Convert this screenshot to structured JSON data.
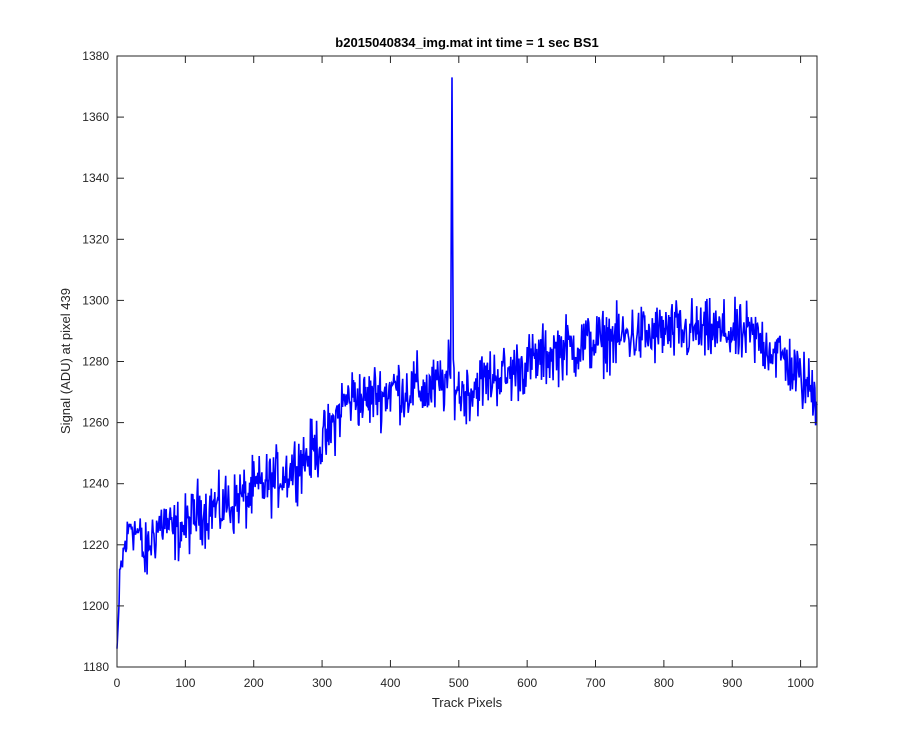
{
  "chart_data": {
    "type": "line",
    "title": "b2015040834_img.mat int time = 1 sec   BS1",
    "xlabel": "Track Pixels",
    "ylabel": "Signal (ADU) at pixel 439",
    "xlim": [
      0,
      1024
    ],
    "ylim": [
      1180,
      1380
    ],
    "xticks": [
      0,
      100,
      200,
      300,
      400,
      500,
      600,
      700,
      800,
      900,
      1000
    ],
    "yticks": [
      1180,
      1200,
      1220,
      1240,
      1260,
      1280,
      1300,
      1320,
      1340,
      1360,
      1380
    ],
    "grid": false,
    "legend": "none",
    "line_color": "#0000ff",
    "series": [
      {
        "values_note_omitted": false,
        "x": [
          0,
          5,
          10,
          15,
          20,
          25,
          30,
          35,
          40,
          45,
          50,
          60,
          70,
          80,
          90,
          100,
          110,
          120,
          130,
          140,
          150,
          160,
          170,
          180,
          190,
          200,
          210,
          220,
          230,
          240,
          250,
          260,
          270,
          280,
          290,
          300,
          310,
          320,
          330,
          340,
          350,
          360,
          370,
          380,
          390,
          400,
          410,
          420,
          430,
          440,
          450,
          460,
          470,
          480,
          488,
          490,
          492,
          500,
          510,
          520,
          530,
          540,
          550,
          560,
          570,
          580,
          590,
          600,
          610,
          620,
          630,
          640,
          650,
          660,
          670,
          680,
          690,
          700,
          710,
          720,
          730,
          740,
          750,
          760,
          770,
          780,
          790,
          800,
          810,
          820,
          830,
          840,
          850,
          860,
          870,
          880,
          890,
          900,
          910,
          920,
          930,
          940,
          950,
          960,
          970,
          980,
          990,
          1000,
          1010,
          1020,
          1024
        ],
        "y": [
          1186,
          1210,
          1218,
          1222,
          1228,
          1225,
          1224,
          1222,
          1215,
          1218,
          1222,
          1226,
          1228,
          1224,
          1225,
          1226,
          1228,
          1232,
          1230,
          1233,
          1231,
          1234,
          1233,
          1236,
          1235,
          1238,
          1239,
          1240,
          1241,
          1243,
          1244,
          1246,
          1248,
          1249,
          1252,
          1253,
          1256,
          1261,
          1266,
          1268,
          1269,
          1267,
          1268,
          1270,
          1269,
          1271,
          1272,
          1270,
          1271,
          1272,
          1270,
          1271,
          1272,
          1273,
          1276,
          1373,
          1275,
          1270,
          1270,
          1271,
          1273,
          1274,
          1275,
          1276,
          1275,
          1277,
          1278,
          1279,
          1280,
          1281,
          1282,
          1283,
          1284,
          1285,
          1284,
          1286,
          1286,
          1287,
          1286,
          1288,
          1287,
          1288,
          1289,
          1288,
          1289,
          1288,
          1289,
          1290,
          1289,
          1290,
          1289,
          1290,
          1290,
          1289,
          1290,
          1289,
          1290,
          1289,
          1288,
          1289,
          1288,
          1287,
          1285,
          1284,
          1282,
          1280,
          1277,
          1274,
          1272,
          1270,
          1268
        ]
      }
    ]
  }
}
